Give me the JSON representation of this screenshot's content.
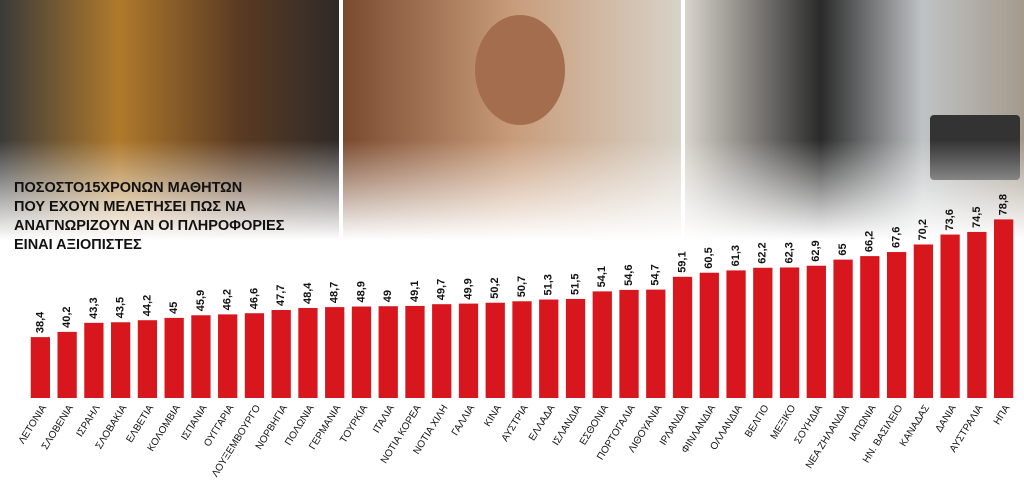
{
  "chart_data": {
    "type": "bar",
    "title": [
      "ΠΟΣΟΣΤΟ15ΧΡΟΝΩΝ ΜΑΘΗΤΩΝ",
      "ΠΟΥ ΕΧΟΥΝ ΜΕΛΕΤΗΣΕΙ ΠΩΣ ΝΑ",
      "ΑΝΑΓΝΩΡΙΖΟΥΝ ΑΝ ΟΙ ΠΛΗΡΟΦΟΡΙΕΣ",
      "ΕΙΝΑΙ ΑΞΙΟΠΙΣΤΕΣ"
    ],
    "categories": [
      "ΛΕΤΟΝΙΑ",
      "ΣΛΟΒΕΝΙΑ",
      "ΙΣΡΑΗΛ",
      "ΣΛΟΒΑΚΙΑ",
      "ΕΛΒΕΤΙΑ",
      "ΚΟΛΟΜΒΙΑ",
      "ΙΣΠΑΝΙΑ",
      "ΟΥΓΓΑΡΙΑ",
      "ΛΟΥΞΕΜΒΟΥΡΓΟ",
      "ΝΟΡΒΗΓΙΑ",
      "ΠΟΛΩΝΙΑ",
      "ΓΕΡΜΑΝΙΑ",
      "ΤΟΥΡΚΙΑ",
      "ΙΤΑΛΙΑ",
      "ΝΟΤΙΑ ΚΟΡΕΑ",
      "ΝΟΤΙΑ ΧΙΛΗ",
      "ΓΑΛΛΙΑ",
      "ΚΙΝΑ",
      "ΑΥΣΤΡΙΑ",
      "ΕΛΛΑΔΑ",
      "ΙΣΛΑΝΔΙΑ",
      "ΕΣΘΟΝΙΑ",
      "ΠΟΡΤΟΓΑΛΙΑ",
      "ΛΙΘΟΥΑΝΙΑ",
      "ΙΡΛΑΝΔΙΑ",
      "ΦΙΝΛΑΝΔΙΑ",
      "ΟΛΛΑΝΔΙΑ",
      "ΒΕΛΓΙΟ",
      "ΜΕΞΙΚΟ",
      "ΣΟΥΗΔΙΑ",
      "ΝΕΑ ΖΗΛΑΝΔΙΑ",
      "ΙΑΠΩΝΙΑ",
      "ΗΝ. ΒΑΣΙΛΕΙΟ",
      "ΚΑΝΑΔΑΣ",
      "ΔΑΝΙΑ",
      "ΑΥΣΤΡΑΛΙΑ",
      "ΗΠΑ"
    ],
    "values": [
      38.4,
      40.2,
      43.3,
      43.5,
      44.2,
      45,
      45.9,
      46.2,
      46.6,
      47.7,
      48.4,
      48.7,
      48.9,
      49,
      49.1,
      49.7,
      49.9,
      50.2,
      50.7,
      51.3,
      51.5,
      54.1,
      54.6,
      54.7,
      59.1,
      60.5,
      61.3,
      62.2,
      62.3,
      62.9,
      65,
      66.2,
      67.6,
      70.2,
      73.6,
      74.5,
      78.8
    ],
    "value_labels": [
      "38,4",
      "40,2",
      "43,3",
      "43,5",
      "44,2",
      "45",
      "45,9",
      "46,2",
      "46,6",
      "47,7",
      "48,4",
      "48,7",
      "48,9",
      "49",
      "49,1",
      "49,7",
      "49,9",
      "50,2",
      "50,7",
      "51,3",
      "51,5",
      "54,1",
      "54,6",
      "54,7",
      "59,1",
      "60,5",
      "61,3",
      "62,2",
      "62,3",
      "62,9",
      "65",
      "66,2",
      "67,6",
      "70,2",
      "73,6",
      "74,5",
      "78,8"
    ],
    "color": "#d7161e",
    "ylim": [
      17.5,
      81
    ]
  }
}
